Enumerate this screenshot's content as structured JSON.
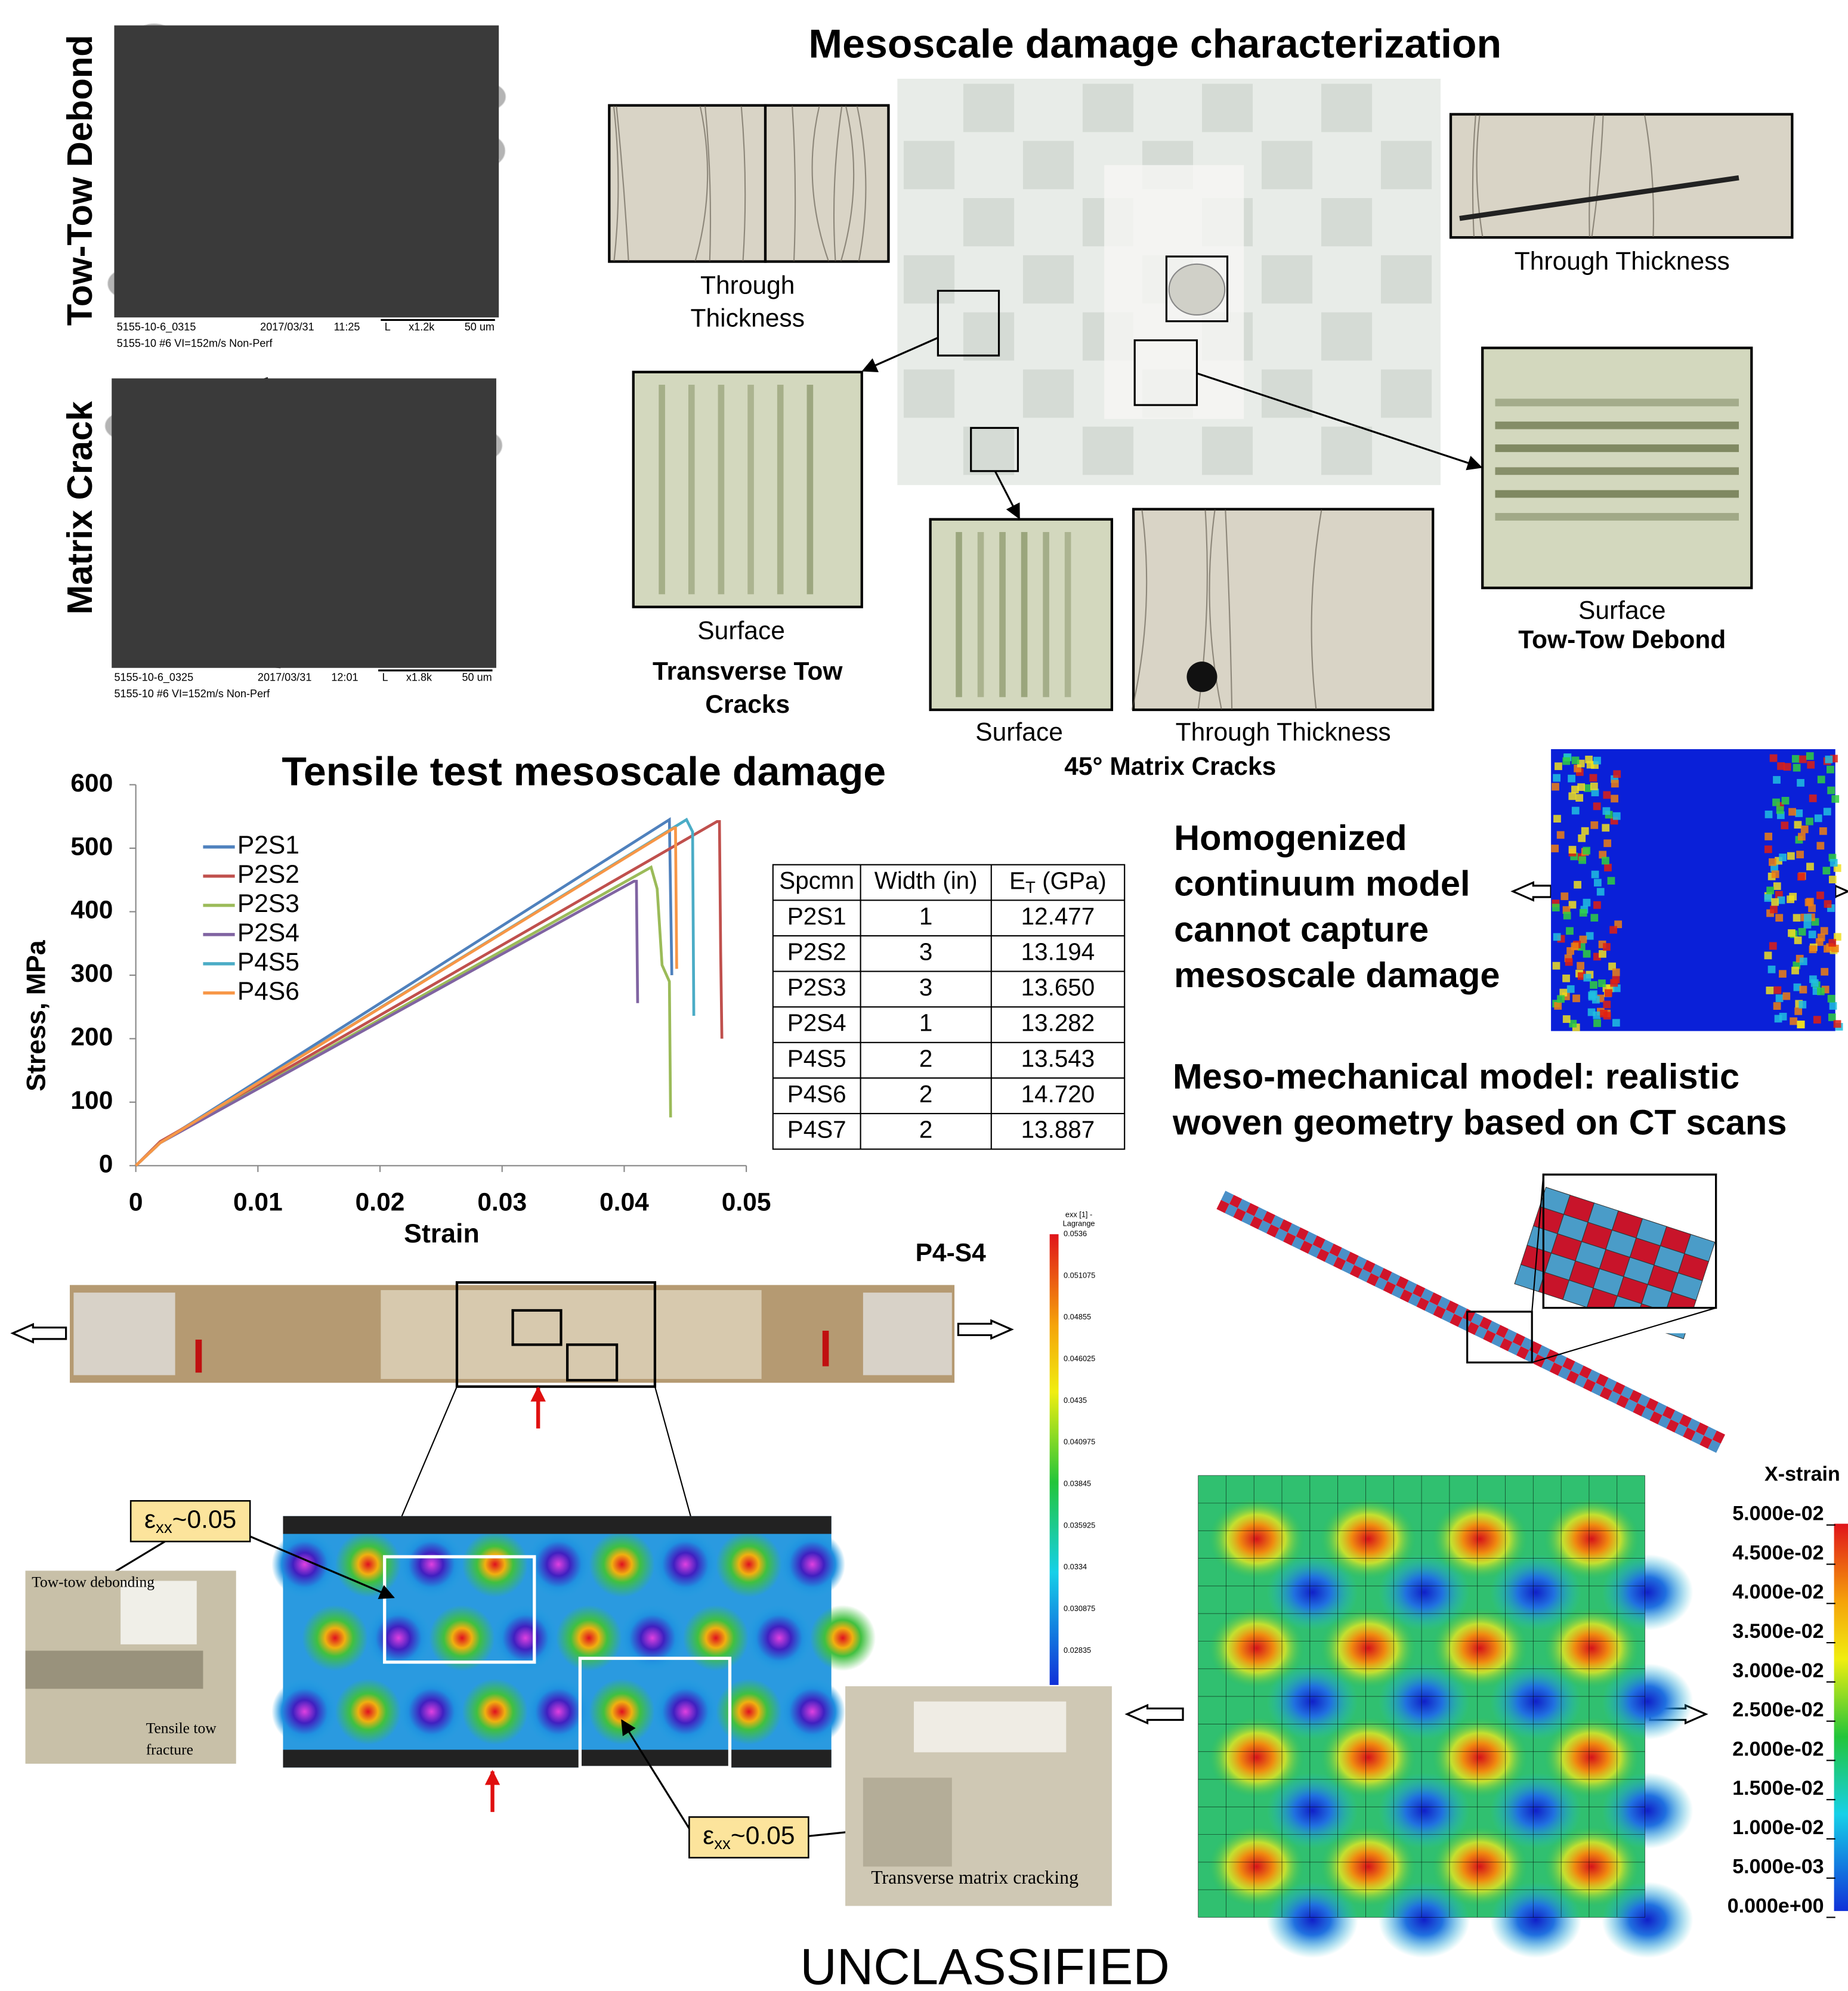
{
  "title": "Mesoscale damage characterization",
  "sem_images": [
    {
      "label": "Tow-Tow Debond",
      "caption": [
        "5155-10-6_0315",
        "2017/03/31",
        "11:25",
        "L",
        "x1.2k",
        "50 um"
      ],
      "caption2": "5155-10 #6 VI=152m/s Non-Perf"
    },
    {
      "label": "Matrix Crack",
      "caption": [
        "5155-10-6_0325",
        "2017/03/31",
        "12:01",
        "L",
        "x1.8k",
        "50 um"
      ],
      "caption2": "5155-10 #6 VI=152m/s Non-Perf"
    }
  ],
  "micrographs": {
    "top_left": [
      "Through",
      "Thickness"
    ],
    "top_right": "Through Thickness",
    "left_surface": "Surface",
    "left_label": [
      "Transverse Tow",
      "Cracks"
    ],
    "bottom_surface": "Surface",
    "bottom_through": "Through Thickness",
    "bottom_label": "45° Matrix Cracks",
    "right_surface": "Surface",
    "right_label": "Tow-Tow Debond"
  },
  "chart_data": {
    "type": "line",
    "title": "Tensile test mesoscale damage",
    "x_label": "Strain",
    "y_label": "Stress, MPa",
    "xlim": [
      0,
      0.05
    ],
    "ylim": [
      0,
      600
    ],
    "xticks": [
      0,
      0.01,
      0.02,
      0.03,
      0.04,
      0.05
    ],
    "yticks": [
      0,
      100,
      200,
      300,
      400,
      500,
      600
    ],
    "series": [
      {
        "name": "P2S1",
        "color": "#4f81bd",
        "x": [
          0,
          0.002,
          0.0437,
          0.0439
        ],
        "values": [
          0,
          36,
          545,
          300
        ]
      },
      {
        "name": "P2S2",
        "color": "#c0504d",
        "x": [
          0,
          0.002,
          0.0476,
          0.0478,
          0.0479,
          0.048
        ],
        "values": [
          0,
          38,
          542,
          542,
          336,
          200
        ]
      },
      {
        "name": "P2S3",
        "color": "#9bbb59",
        "x": [
          0,
          0.002,
          0.0422,
          0.0427,
          0.0431,
          0.0437,
          0.0438
        ],
        "values": [
          0,
          36,
          470,
          436,
          316,
          290,
          76
        ]
      },
      {
        "name": "P2S4",
        "color": "#8064a2",
        "x": [
          0,
          0.002,
          0.0408,
          0.041,
          0.0411
        ],
        "values": [
          0,
          36,
          448,
          448,
          256
        ]
      },
      {
        "name": "P4S5",
        "color": "#4bacc6",
        "x": [
          0,
          0.002,
          0.0451,
          0.0456,
          0.0457
        ],
        "values": [
          0,
          36,
          545,
          526,
          236
        ]
      },
      {
        "name": "P4S6",
        "color": "#f79646",
        "x": [
          0,
          0.002,
          0.0441,
          0.0442,
          0.0443
        ],
        "values": [
          0,
          36,
          532,
          532,
          310
        ]
      }
    ]
  },
  "table": {
    "header": [
      "Spcmn",
      "Width (in)",
      {
        "main": "E",
        "sub": "T",
        "rest": " (GPa)"
      }
    ],
    "rows": [
      [
        "P2S1",
        "1",
        "12.477"
      ],
      [
        "P2S2",
        "3",
        "13.194"
      ],
      [
        "P2S3",
        "3",
        "13.650"
      ],
      [
        "P2S4",
        "1",
        "13.282"
      ],
      [
        "P4S5",
        "2",
        "13.543"
      ],
      [
        "P4S6",
        "2",
        "14.720"
      ],
      [
        "P4S7",
        "2",
        "13.887"
      ]
    ]
  },
  "homogenized_text": [
    "Homogenized",
    "continuum model",
    "cannot capture",
    "mesoscale damage"
  ],
  "meso_text": [
    "Meso-mechanical model: realistic",
    "woven geometry based on CT scans"
  ],
  "specimen_label": "P4-S4",
  "dic_colorbar": {
    "title": [
      "exx [1] -",
      "Lagrange"
    ],
    "labels": [
      "0.0536",
      "0.051075",
      "0.04855",
      "0.046025",
      "0.0435",
      "0.040975",
      "0.03845",
      "0.035925",
      "0.0334",
      "0.030875",
      "0.02835"
    ]
  },
  "strain_callouts": [
    {
      "symbol": "ε",
      "sub": "xx",
      "rest": "~0.05"
    },
    {
      "symbol": "ε",
      "sub": "xx",
      "rest": "~0.05"
    }
  ],
  "photo_left": {
    "debond": "Tow-tow debonding",
    "fracture": [
      "Tensile tow",
      "fracture"
    ]
  },
  "photo_right": "Transverse matrix cracking",
  "fe_legend": {
    "title": "X-strain",
    "labels": [
      "5.000e-02",
      "4.500e-02",
      "4.000e-02",
      "3.500e-02",
      "3.000e-02",
      "2.500e-02",
      "2.000e-02",
      "1.500e-02",
      "1.000e-02",
      "5.000e-03",
      "0.000e+00"
    ]
  },
  "footer": "UNCLASSIFIED"
}
